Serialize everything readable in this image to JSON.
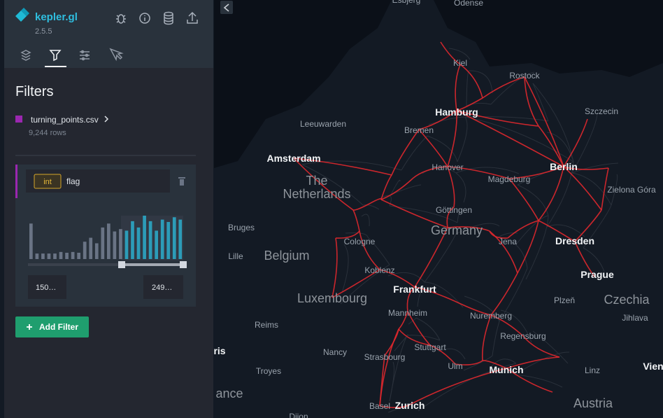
{
  "header": {
    "title": "kepler.gl",
    "version": "2.5.5"
  },
  "panel": {
    "title": "Filters",
    "dataset": {
      "name": "turning_points.csv",
      "rows": "9,244 rows"
    },
    "filter": {
      "type": "int",
      "field": "flag",
      "histogram": [
        45,
        7,
        7,
        7,
        7,
        9,
        8,
        9,
        8,
        22,
        27,
        20,
        40,
        45,
        35,
        38,
        36,
        48,
        40,
        55,
        48,
        36,
        50,
        47,
        53,
        50
      ],
      "range_min_label": "150…",
      "range_max_label": "249…"
    },
    "add_button": "Add Filter"
  },
  "map": {
    "labels": [
      "Esbjerg",
      "Odense",
      "Kiel",
      "Rostock",
      "Hamburg",
      "Szczecin",
      "Leeuwarden",
      "Bremen",
      "Amsterdam",
      "Hanover",
      "Berlin",
      "The",
      "Netherlands",
      "Magdeburg",
      "Zielona Góra",
      "Bruges",
      "Göttingen",
      "Germany",
      "Cologne",
      "Jena",
      "Dresden",
      "Lille",
      "Belgium",
      "Koblenz",
      "Prague",
      "Frankfurt",
      "Luxembourg",
      "Plzeň",
      "Czechia",
      "Mannheim",
      "Nuremberg",
      "Jihlava",
      "Reims",
      "Regensburg",
      "Nancy",
      "Strasbourg",
      "Stuttgart",
      "ris",
      "Troyes",
      "Ulm",
      "Munich",
      "Linz",
      "Vien",
      "ance",
      "Austria",
      "Basel",
      "Zurich",
      "Dijon"
    ]
  }
}
